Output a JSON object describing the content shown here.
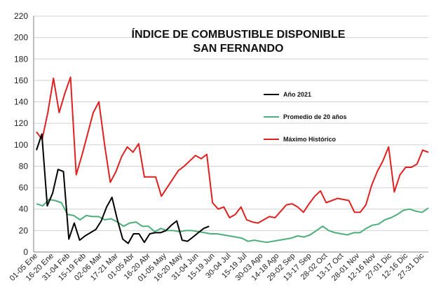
{
  "chart_data": {
    "type": "line",
    "title_line1": "ÍNDICE DE COMBUSTIBLE DISPONIBLE",
    "title_line2": "SAN FERNANDO",
    "xlabel": "",
    "ylabel": "",
    "ylim": [
      0,
      220
    ],
    "yticks": [
      0,
      20,
      40,
      60,
      80,
      100,
      120,
      140,
      160,
      180,
      200,
      220
    ],
    "grid": true,
    "legend_position": "top-center",
    "x_labels": [
      "01-05 Ene",
      "16-20 Ene",
      "31-04 Feb",
      "15-19 Feb",
      "02-06 Mar",
      "17-21 Mar",
      "01-05 Abr",
      "16-20 Abr",
      "01-05 May",
      "16-20 May",
      "31-04 Jun",
      "15-19 Jun",
      "30-04 Jul",
      "15-19 Jul",
      "30-03 Ago",
      "14-18 Ago",
      "29-02 Sep",
      "13-17 Sep",
      "28-02 Oct",
      "13-17 Oct",
      "28-01 Nov",
      "12-16 Nov",
      "27-01 Dic",
      "12-16 Dic",
      "27-31 Dic"
    ],
    "series": [
      {
        "name": "Año 2021",
        "color": "#000000",
        "values": [
          95,
          110,
          43,
          55,
          77,
          75,
          12,
          27,
          11,
          15,
          18,
          21,
          29,
          42,
          51,
          30,
          12,
          8,
          17,
          17,
          9,
          17,
          18,
          18,
          20,
          25,
          29,
          11,
          10,
          14,
          18,
          22,
          24
        ]
      },
      {
        "name": "Promedio de 20 años",
        "color": "#4caf7a",
        "values": [
          45,
          43,
          49,
          48,
          46,
          35,
          34,
          30,
          34,
          33,
          33,
          30,
          31,
          28,
          24,
          27,
          28,
          24,
          24,
          19,
          22,
          20,
          20,
          19,
          20,
          20,
          19,
          18,
          17,
          17,
          16,
          15,
          14,
          13,
          10,
          11,
          10,
          9,
          10,
          11,
          12,
          13,
          15,
          14,
          16,
          20,
          24,
          20,
          18,
          17,
          16,
          18,
          18,
          22,
          25,
          26,
          30,
          32,
          35,
          39,
          40,
          38,
          37,
          41
        ]
      },
      {
        "name": "Máximo Histórico",
        "color": "#e02020",
        "values": [
          112,
          105,
          130,
          162,
          130,
          148,
          163,
          72,
          90,
          110,
          130,
          140,
          100,
          65,
          75,
          89,
          98,
          93,
          101,
          70,
          70,
          70,
          52,
          60,
          68,
          76,
          80,
          85,
          90,
          87,
          91,
          46,
          40,
          42,
          32,
          35,
          42,
          30,
          28,
          27,
          30,
          33,
          32,
          38,
          44,
          45,
          42,
          37,
          45,
          52,
          57,
          46,
          48,
          50,
          49,
          48,
          37,
          37,
          44,
          62,
          75,
          85,
          98,
          56,
          72,
          79,
          79,
          82,
          95,
          93
        ]
      }
    ]
  }
}
